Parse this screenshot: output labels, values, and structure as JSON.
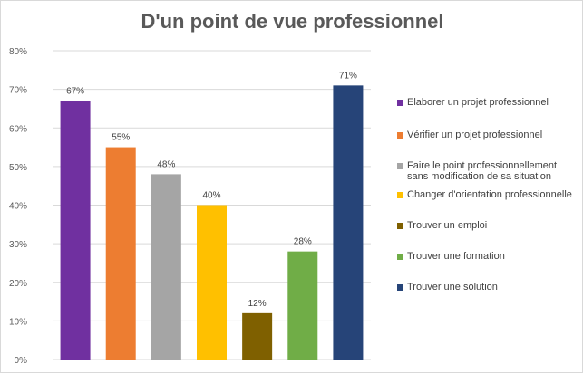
{
  "chart_data": {
    "type": "bar",
    "title": "D'un point de vue professionnel",
    "xlabel": "",
    "ylabel": "",
    "ylim": [
      0,
      80
    ],
    "yticks": [
      0,
      10,
      20,
      30,
      40,
      50,
      60,
      70,
      80
    ],
    "ytick_labels": [
      "0%",
      "10%",
      "20%",
      "30%",
      "40%",
      "50%",
      "60%",
      "70%",
      "80%"
    ],
    "grid": true,
    "legend_position": "right",
    "categories": [
      "Elaborer un projet professionnel",
      "Vérifier un projet professionnel",
      "Faire le point professionnellement sans modification de sa situation",
      "Changer d'orientation professionnelle",
      "Trouver un emploi",
      "Trouver une formation",
      "Trouver une solution"
    ],
    "values": [
      67,
      55,
      48,
      40,
      12,
      28,
      71
    ],
    "data_labels": [
      "67%",
      "55%",
      "48%",
      "40%",
      "12%",
      "28%",
      "71%"
    ],
    "colors": [
      "#7030a0",
      "#ed7d31",
      "#a5a5a5",
      "#ffc000",
      "#7f6000",
      "#70ad47",
      "#264478"
    ],
    "legend": [
      {
        "label": "Elaborer un projet professionnel",
        "color": "#7030a0"
      },
      {
        "label": "Vérifier un projet professionnel",
        "color": "#ed7d31"
      },
      {
        "label": "Faire le point professionnellement sans modification de sa situation",
        "color": "#a5a5a5"
      },
      {
        "label": "Changer d'orientation professionnelle",
        "color": "#ffc000"
      },
      {
        "label": "Trouver un emploi",
        "color": "#7f6000"
      },
      {
        "label": "Trouver une formation",
        "color": "#70ad47"
      },
      {
        "label": "Trouver une solution",
        "color": "#264478"
      }
    ]
  }
}
